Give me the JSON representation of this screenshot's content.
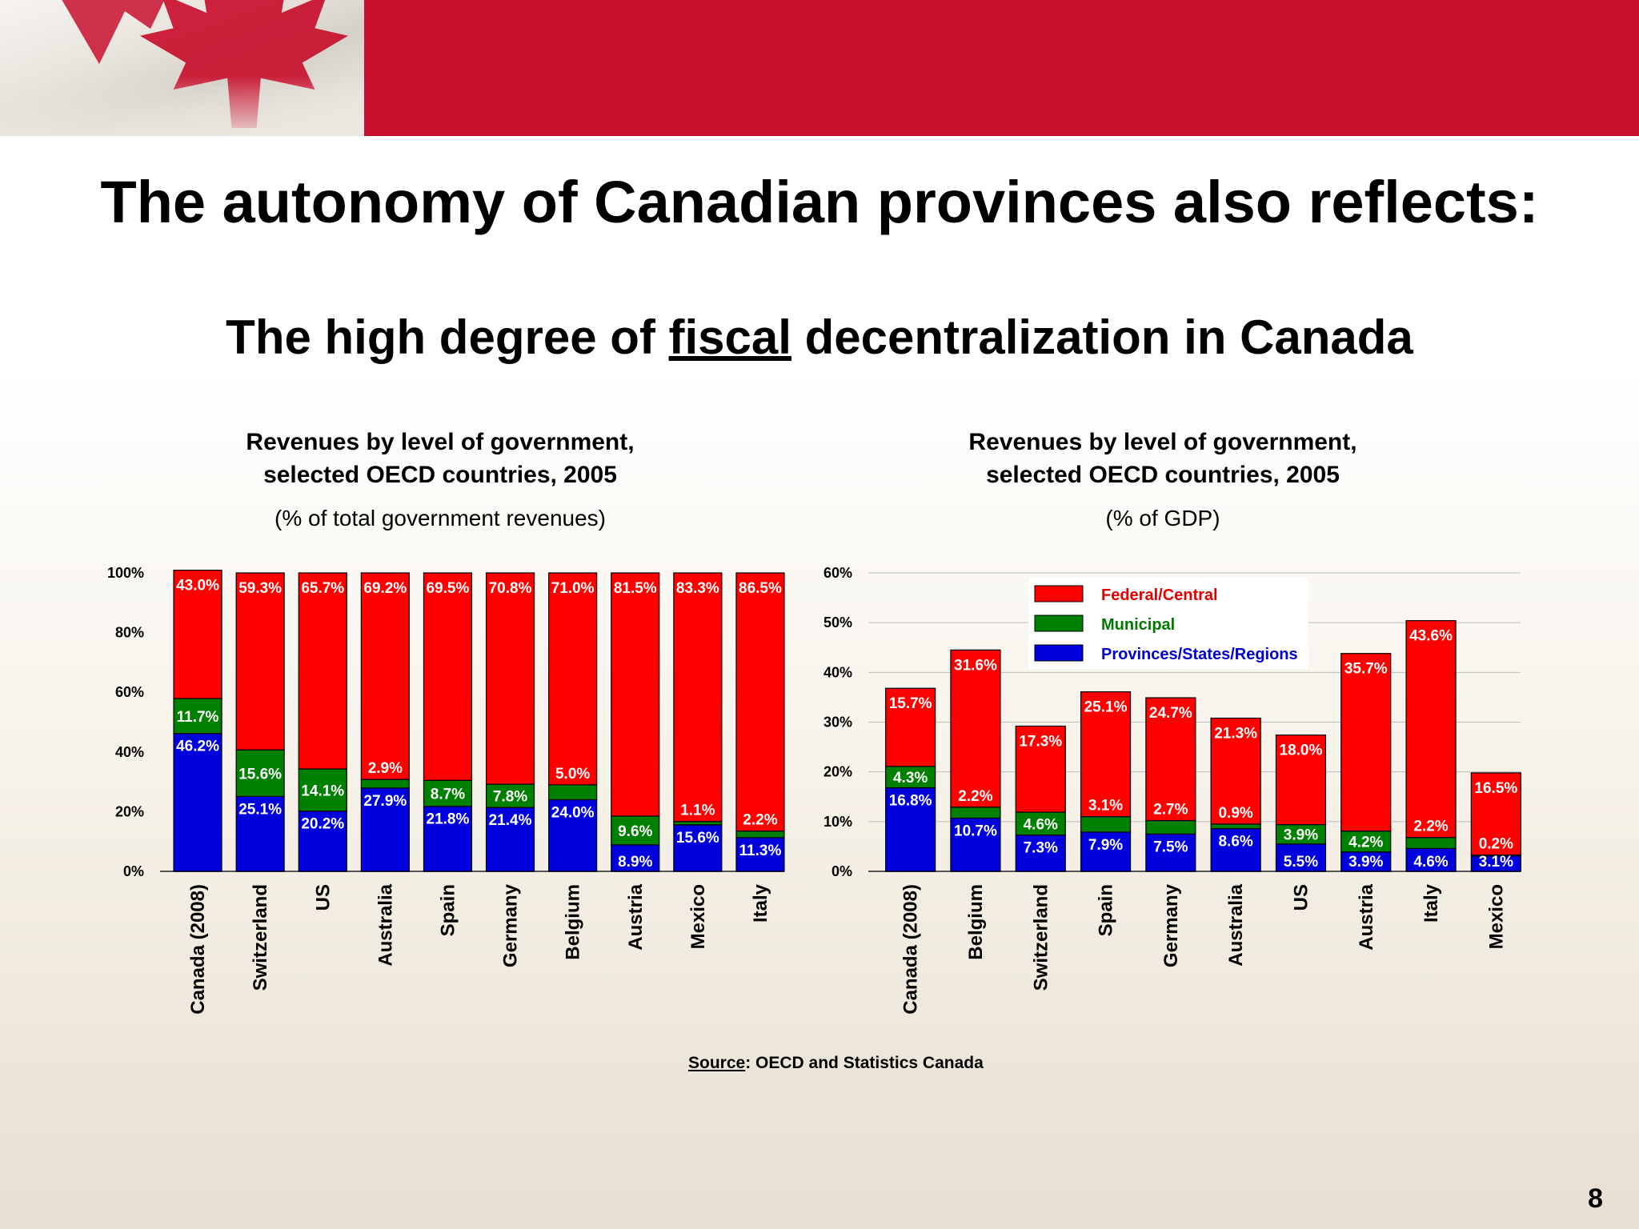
{
  "slide": {
    "title": "The autonomy of Canadian provinces also reflects:",
    "subtitle_before": "The high degree of ",
    "subtitle_emph": "fiscal",
    "subtitle_after": " decentralization in Canada",
    "source_label": "Source",
    "source_text": ": OECD and Statistics Canada",
    "page_number": "8"
  },
  "colors": {
    "federal": "#ff0000",
    "municipal": "#008000",
    "provincial": "#0000dd"
  },
  "chart_data": [
    {
      "type": "bar",
      "stacked": true,
      "title_line1": "Revenues by level of government,",
      "title_line2": "selected OECD countries, 2005",
      "subtitle": "(% of total government revenues)",
      "ylim": [
        0,
        100
      ],
      "y_ticks": [
        "0%",
        "20%",
        "40%",
        "60%",
        "80%",
        "100%"
      ],
      "categories": [
        "Canada (2008)",
        "Switzerland",
        "US",
        "Australia",
        "Spain",
        "Germany",
        "Belgium",
        "Austria",
        "Mexico",
        "Italy"
      ],
      "series": [
        {
          "key": "provincial",
          "values": [
            46.2,
            25.1,
            20.2,
            27.9,
            21.8,
            21.4,
            24.0,
            8.9,
            15.6,
            11.3
          ],
          "labels": [
            "46.2%",
            "25.1%",
            "20.2%",
            "27.9%",
            "21.8%",
            "21.4%",
            "24.0%",
            "8.9%",
            "15.6%",
            "11.3%"
          ]
        },
        {
          "key": "municipal",
          "values": [
            11.7,
            15.6,
            14.1,
            2.9,
            8.7,
            7.8,
            5.0,
            9.6,
            1.1,
            2.2
          ],
          "labels": [
            "11.7%",
            "15.6%",
            "14.1%",
            "2.9%",
            "8.7%",
            "7.8%",
            "5.0%",
            "9.6%",
            "1.1%",
            "2.2%"
          ]
        },
        {
          "key": "federal",
          "values": [
            43.0,
            59.3,
            65.7,
            69.2,
            69.5,
            70.8,
            71.0,
            81.5,
            83.3,
            86.5
          ],
          "labels": [
            "43.0%",
            "59.3%",
            "65.7%",
            "69.2%",
            "69.5%",
            "70.8%",
            "71.0%",
            "81.5%",
            "83.3%",
            "86.5%"
          ]
        }
      ]
    },
    {
      "type": "bar",
      "stacked": true,
      "title_line1": "Revenues by level of government,",
      "title_line2": "selected OECD countries, 2005",
      "subtitle": "(% of GDP)",
      "ylim": [
        0,
        60
      ],
      "y_ticks": [
        "0%",
        "10%",
        "20%",
        "30%",
        "40%",
        "50%",
        "60%"
      ],
      "grid": true,
      "categories": [
        "Canada (2008)",
        "Belgium",
        "Switzerland",
        "Spain",
        "Germany",
        "Australia",
        "US",
        "Austria",
        "Italy",
        "Mexico"
      ],
      "legend": [
        "Federal/Central",
        "Municipal",
        "Provinces/States/Regions"
      ],
      "legend_position": "top-center",
      "series": [
        {
          "key": "provincial",
          "name": "Provinces/States/Regions",
          "values": [
            16.8,
            10.7,
            7.3,
            7.9,
            7.5,
            8.6,
            5.5,
            3.9,
            4.6,
            3.1
          ],
          "labels": [
            "16.8%",
            "10.7%",
            "7.3%",
            "7.9%",
            "7.5%",
            "8.6%",
            "5.5%",
            "3.9%",
            "4.6%",
            "3.1%"
          ]
        },
        {
          "key": "municipal",
          "name": "Municipal",
          "values": [
            4.3,
            2.2,
            4.6,
            3.1,
            2.7,
            0.9,
            3.9,
            4.2,
            2.2,
            0.2
          ],
          "labels": [
            "4.3%",
            "2.2%",
            "4.6%",
            "3.1%",
            "2.7%",
            "0.9%",
            "3.9%",
            "4.2%",
            "2.2%",
            "0.2%"
          ]
        },
        {
          "key": "federal",
          "name": "Federal/Central",
          "values": [
            15.7,
            31.6,
            17.3,
            25.1,
            24.7,
            21.3,
            18.0,
            35.7,
            43.6,
            16.5
          ],
          "labels": [
            "15.7%",
            "31.6%",
            "17.3%",
            "25.1%",
            "24.7%",
            "21.3%",
            "18.0%",
            "35.7%",
            "43.6%",
            "16.5%"
          ]
        }
      ]
    }
  ]
}
